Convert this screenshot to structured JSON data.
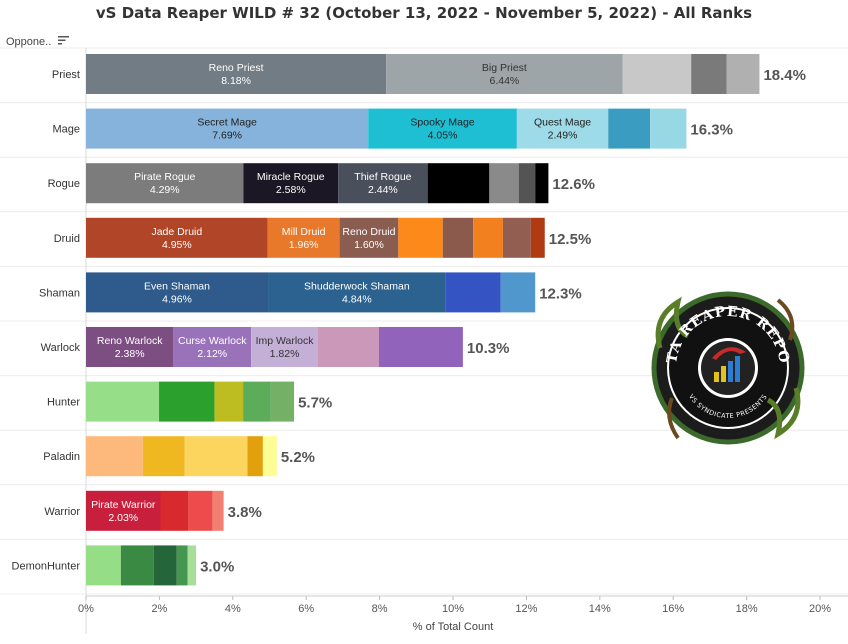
{
  "header": {
    "title": "vS Data Reaper WILD # 32 (October 13, 2022 - November 5, 2022) - All Ranks",
    "sort_label": "Oppone..",
    "sort_icon": "sort-icon"
  },
  "logo": {
    "name": "data-reaper-report-logo",
    "text_top": "DATA REAPER REPORT",
    "text_bottom": "VS SYNDICATE PRESENTS"
  },
  "chart_data": {
    "type": "bar",
    "orientation": "horizontal",
    "stacked": true,
    "title": "vS Data Reaper WILD # 32 (October 13, 2022 - November 5, 2022) - All Ranks",
    "xlabel": "% of Total Count",
    "ylabel": "Oppone..",
    "xlim": [
      0,
      20
    ],
    "xticks": [
      "0%",
      "2%",
      "4%",
      "6%",
      "8%",
      "10%",
      "12%",
      "14%",
      "16%",
      "18%",
      "20%"
    ],
    "grid": false,
    "categories": [
      {
        "name": "Priest",
        "total": 18.4,
        "total_label": "18.4%",
        "segments": [
          {
            "label": "Reno Priest",
            "value": 8.18,
            "value_label": "8.18%",
            "color": "#727c84",
            "text": "#ffffff"
          },
          {
            "label": "Big Priest",
            "value": 6.44,
            "value_label": "6.44%",
            "color": "#9ea5a8",
            "text": "#333333"
          },
          {
            "label": "",
            "value": 1.87,
            "color": "#c8c8c8"
          },
          {
            "label": "",
            "value": 0.97,
            "color": "#7a7a7a"
          },
          {
            "label": "",
            "value": 0.89,
            "color": "#b0b0b0"
          }
        ]
      },
      {
        "name": "Mage",
        "total": 16.3,
        "total_label": "16.3%",
        "segments": [
          {
            "label": "Secret Mage",
            "value": 7.69,
            "value_label": "7.69%",
            "color": "#85b3dc",
            "text": "#222222"
          },
          {
            "label": "Spooky Mage",
            "value": 4.05,
            "value_label": "4.05%",
            "color": "#1ebfd3",
            "text": "#222222"
          },
          {
            "label": "Quest Mage",
            "value": 2.49,
            "value_label": "2.49%",
            "color": "#9ddbe8",
            "text": "#222222"
          },
          {
            "label": "",
            "value": 1.14,
            "color": "#3a9cc0"
          },
          {
            "label": "",
            "value": 0.99,
            "color": "#97d8e4"
          }
        ]
      },
      {
        "name": "Rogue",
        "total": 12.6,
        "total_label": "12.6%",
        "segments": [
          {
            "label": "Pirate Rogue",
            "value": 4.29,
            "value_label": "4.29%",
            "color": "#7c7c7c",
            "text": "#ffffff"
          },
          {
            "label": "Miracle Rogue",
            "value": 2.58,
            "value_label": "2.58%",
            "color": "#1b1724",
            "text": "#ffffff"
          },
          {
            "label": "Thief Rogue",
            "value": 2.44,
            "value_label": "2.44%",
            "color": "#4a4f5c",
            "text": "#ffffff"
          },
          {
            "label": "",
            "value": 1.68,
            "color": "#000000"
          },
          {
            "label": "",
            "value": 0.8,
            "color": "#8a8a8a"
          },
          {
            "label": "",
            "value": 0.45,
            "color": "#545454"
          },
          {
            "label": "",
            "value": 0.36,
            "color": "#000000"
          }
        ]
      },
      {
        "name": "Druid",
        "total": 12.5,
        "total_label": "12.5%",
        "segments": [
          {
            "label": "Jade Druid",
            "value": 4.95,
            "value_label": "4.95%",
            "color": "#b04527",
            "text": "#ffffff"
          },
          {
            "label": "Mill Druid",
            "value": 1.96,
            "value_label": "1.96%",
            "color": "#e8782a",
            "text": "#ffffff"
          },
          {
            "label": "Reno Druid",
            "value": 1.6,
            "value_label": "1.60%",
            "color": "#8b5c50",
            "text": "#ffffff"
          },
          {
            "label": "",
            "value": 1.21,
            "color": "#fb8a1a"
          },
          {
            "label": "",
            "value": 0.83,
            "color": "#8c5a4c"
          },
          {
            "label": "",
            "value": 0.81,
            "color": "#f2801e"
          },
          {
            "label": "",
            "value": 0.76,
            "color": "#925e52"
          },
          {
            "label": "",
            "value": 0.38,
            "color": "#b03a12"
          }
        ]
      },
      {
        "name": "Shaman",
        "total": 12.3,
        "total_label": "12.3%",
        "segments": [
          {
            "label": "Even Shaman",
            "value": 4.96,
            "value_label": "4.96%",
            "color": "#2e5a8c",
            "text": "#ffffff"
          },
          {
            "label": "Shudderwock Shaman",
            "value": 4.84,
            "value_label": "4.84%",
            "color": "#2b6290",
            "text": "#ffffff"
          },
          {
            "label": "",
            "value": 1.5,
            "color": "#3454c4"
          },
          {
            "label": "",
            "value": 0.94,
            "color": "#4f97cc"
          }
        ]
      },
      {
        "name": "Warlock",
        "total": 10.3,
        "total_label": "10.3%",
        "segments": [
          {
            "label": "Reno Warlock",
            "value": 2.38,
            "value_label": "2.38%",
            "color": "#7c4e82",
            "text": "#ffffff"
          },
          {
            "label": "Curse Warlock",
            "value": 2.12,
            "value_label": "2.12%",
            "color": "#9a72ba",
            "text": "#ffffff"
          },
          {
            "label": "Imp Warlock",
            "value": 1.82,
            "value_label": "1.82%",
            "color": "#c4b0d6",
            "text": "#333333"
          },
          {
            "label": "",
            "value": 1.66,
            "color": "#cc98b9"
          },
          {
            "label": "",
            "value": 2.29,
            "color": "#9263bb"
          }
        ]
      },
      {
        "name": "Hunter",
        "total": 5.7,
        "total_label": "5.7%",
        "segments": [
          {
            "label": "",
            "value": 1.99,
            "color": "#96de87"
          },
          {
            "label": "",
            "value": 1.51,
            "color": "#2ca02c"
          },
          {
            "label": "",
            "value": 0.78,
            "color": "#bdbd22"
          },
          {
            "label": "",
            "value": 0.75,
            "color": "#5cac5a"
          },
          {
            "label": "",
            "value": 0.64,
            "color": "#74b066"
          }
        ]
      },
      {
        "name": "Paladin",
        "total": 5.2,
        "total_label": "5.2%",
        "segments": [
          {
            "label": "",
            "value": 1.55,
            "color": "#fdb87c"
          },
          {
            "label": "",
            "value": 1.14,
            "color": "#efb820"
          },
          {
            "label": "",
            "value": 1.71,
            "color": "#fcd55e"
          },
          {
            "label": "",
            "value": 0.42,
            "color": "#e3a00d"
          },
          {
            "label": "",
            "value": 0.38,
            "color": "#fdfd95"
          }
        ]
      },
      {
        "name": "Warrior",
        "total": 3.8,
        "total_label": "3.8%",
        "segments": [
          {
            "label": "Pirate Warrior",
            "value": 2.03,
            "value_label": "2.03%",
            "color": "#c8203c",
            "text": "#ffffff"
          },
          {
            "label": "",
            "value": 0.75,
            "color": "#d8292e"
          },
          {
            "label": "",
            "value": 0.67,
            "color": "#ec4c4c"
          },
          {
            "label": "",
            "value": 0.3,
            "color": "#f27f72"
          }
        ]
      },
      {
        "name": "DemonHunter",
        "total": 3.0,
        "total_label": "3.0%",
        "segments": [
          {
            "label": "",
            "value": 0.95,
            "color": "#95de86"
          },
          {
            "label": "",
            "value": 0.9,
            "color": "#3a8a43"
          },
          {
            "label": "",
            "value": 0.62,
            "color": "#24653a"
          },
          {
            "label": "",
            "value": 0.3,
            "color": "#459650"
          },
          {
            "label": "",
            "value": 0.23,
            "color": "#a7df9a"
          }
        ]
      }
    ]
  }
}
